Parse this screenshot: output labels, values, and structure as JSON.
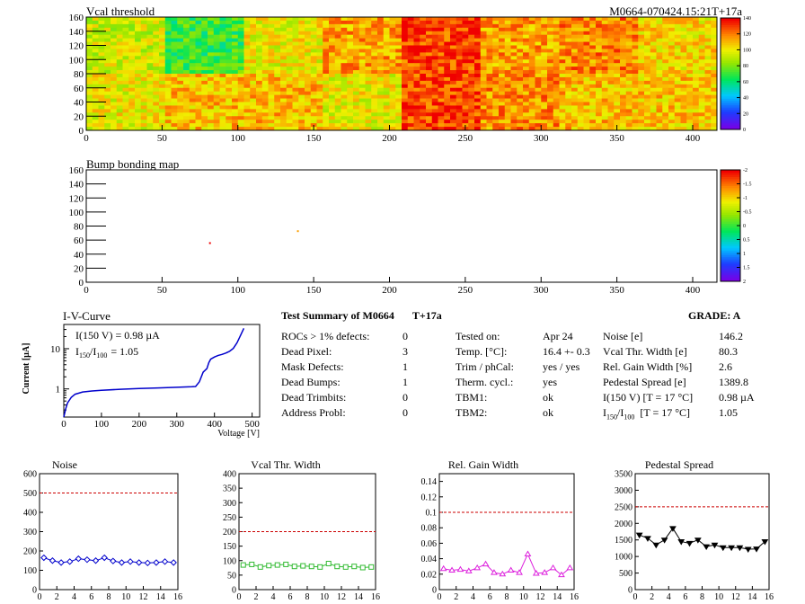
{
  "header": {
    "right_label": "M0664-070424.15:21T+17a"
  },
  "chart_data": [
    {
      "type": "heatmap",
      "title": "Vcal threshold",
      "xlim": [
        0,
        416
      ],
      "ylim": [
        0,
        160
      ],
      "x_ticks": [
        0,
        50,
        100,
        150,
        200,
        250,
        300,
        350,
        400
      ],
      "y_ticks": [
        0,
        20,
        40,
        60,
        80,
        100,
        120,
        140,
        160
      ],
      "color_scale": [
        0,
        140
      ],
      "color_scale_ticks": [
        0,
        20,
        40,
        60,
        80,
        100,
        120,
        140
      ],
      "roc_mean_levels_top": [
        95,
        70,
        100,
        115,
        130,
        115,
        120,
        105
      ],
      "roc_mean_levels_bottom": [
        100,
        110,
        110,
        100,
        130,
        118,
        110,
        108
      ]
    },
    {
      "type": "heatmap",
      "title": "Bump bonding map",
      "xlim": [
        0,
        416
      ],
      "ylim": [
        0,
        160
      ],
      "x_ticks": [
        0,
        50,
        100,
        150,
        200,
        250,
        300,
        350,
        400
      ],
      "y_ticks": [
        0,
        20,
        40,
        60,
        80,
        100,
        120,
        140,
        160
      ],
      "color_scale": [
        -2,
        2
      ],
      "color_scale_ticks": [
        "2",
        "1.5",
        "1",
        "0.5",
        "0",
        "-0.5",
        "-1",
        "-1.5",
        "-2"
      ],
      "points": [
        {
          "x": 81,
          "y": 57,
          "value": 2
        },
        {
          "x": 139,
          "y": 74,
          "value": 1.3
        }
      ]
    },
    {
      "type": "line",
      "title": "I-V-Curve",
      "xlabel": "Voltage [V]",
      "ylabel": "Current [µA]",
      "y_scale": "log",
      "xlim": [
        0,
        520
      ],
      "ylim": [
        0.2,
        40
      ],
      "x_ticks": [
        0,
        100,
        200,
        300,
        400,
        500
      ],
      "y_ticks": [
        1,
        10
      ],
      "y_tick_labels": [
        "1",
        "10"
      ],
      "annotation_1": "I(150 V) = 0.98 µA",
      "annotation_2_main": "I",
      "annotation_2_sub1": "150",
      "annotation_2_mid": "/I",
      "annotation_2_sub2": "100",
      "annotation_2_value": "=  1.05",
      "x": [
        0,
        5,
        10,
        20,
        30,
        50,
        75,
        100,
        150,
        200,
        250,
        300,
        340,
        350,
        360,
        370,
        380,
        385,
        390,
        400,
        410,
        420,
        430,
        440,
        450,
        460,
        470,
        478
      ],
      "y": [
        0.2,
        0.32,
        0.45,
        0.62,
        0.74,
        0.84,
        0.89,
        0.92,
        0.98,
        1.02,
        1.06,
        1.1,
        1.13,
        1.15,
        1.5,
        2.6,
        3.2,
        4.5,
        5.5,
        6.2,
        6.8,
        7.2,
        7.8,
        8.6,
        10.2,
        14,
        22,
        32
      ]
    },
    {
      "type": "line",
      "title": "Noise",
      "xlim": [
        0,
        16
      ],
      "ylim": [
        0,
        600
      ],
      "x_ticks": [
        0,
        2,
        4,
        6,
        8,
        10,
        12,
        14,
        16
      ],
      "y_ticks": [
        0,
        100,
        200,
        300,
        400,
        500,
        600
      ],
      "threshold": 500,
      "color": "#0000cc",
      "marker": "diamond",
      "x": [
        0.5,
        1.5,
        2.5,
        3.5,
        4.5,
        5.5,
        6.5,
        7.5,
        8.5,
        9.5,
        10.5,
        11.5,
        12.5,
        13.5,
        14.5,
        15.5
      ],
      "y": [
        165,
        150,
        140,
        145,
        160,
        155,
        150,
        165,
        148,
        140,
        145,
        140,
        138,
        140,
        145,
        140
      ]
    },
    {
      "type": "line",
      "title": "Vcal Thr. Width",
      "xlim": [
        0,
        16
      ],
      "ylim": [
        0,
        400
      ],
      "x_ticks": [
        0,
        2,
        4,
        6,
        8,
        10,
        12,
        14,
        16
      ],
      "y_ticks": [
        0,
        50,
        100,
        150,
        200,
        250,
        300,
        350,
        400
      ],
      "threshold": 200,
      "color": "#33bb33",
      "marker": "square",
      "x": [
        0.5,
        1.5,
        2.5,
        3.5,
        4.5,
        5.5,
        6.5,
        7.5,
        8.5,
        9.5,
        10.5,
        11.5,
        12.5,
        13.5,
        14.5,
        15.5
      ],
      "y": [
        85,
        87,
        78,
        83,
        85,
        87,
        80,
        82,
        80,
        78,
        90,
        80,
        78,
        80,
        76,
        78
      ]
    },
    {
      "type": "line",
      "title": "Rel. Gain Width",
      "xlim": [
        0,
        16
      ],
      "ylim": [
        0,
        0.15
      ],
      "x_ticks": [
        0,
        2,
        4,
        6,
        8,
        10,
        12,
        14,
        16
      ],
      "y_ticks": [
        0,
        0.02,
        0.04,
        0.06,
        0.08,
        0.1,
        0.12,
        0.14
      ],
      "threshold": 0.1,
      "color": "#dd22dd",
      "marker": "triangle",
      "x": [
        0.5,
        1.5,
        2.5,
        3.5,
        4.5,
        5.5,
        6.5,
        7.5,
        8.5,
        9.5,
        10.5,
        11.5,
        12.5,
        13.5,
        14.5,
        15.5
      ],
      "y": [
        0.027,
        0.025,
        0.026,
        0.024,
        0.028,
        0.033,
        0.022,
        0.02,
        0.025,
        0.022,
        0.046,
        0.021,
        0.022,
        0.028,
        0.019,
        0.028
      ]
    },
    {
      "type": "line",
      "title": "Pedestal Spread",
      "xlim": [
        0,
        16
      ],
      "ylim": [
        0,
        3500
      ],
      "x_ticks": [
        0,
        2,
        4,
        6,
        8,
        10,
        12,
        14,
        16
      ],
      "y_ticks": [
        0,
        500,
        1000,
        1500,
        2000,
        2500,
        3000,
        3500
      ],
      "threshold": 2500,
      "color": "#000000",
      "marker": "triangle-down",
      "x": [
        0.5,
        1.5,
        2.5,
        3.5,
        4.5,
        5.5,
        6.5,
        7.5,
        8.5,
        9.5,
        10.5,
        11.5,
        12.5,
        13.5,
        14.5,
        15.5
      ],
      "y": [
        1650,
        1550,
        1350,
        1500,
        1850,
        1450,
        1400,
        1500,
        1300,
        1350,
        1270,
        1270,
        1270,
        1220,
        1230,
        1450
      ]
    }
  ],
  "summary": {
    "title": "Test Summary of M0664",
    "tag": "T+17a",
    "grade": "GRADE:  A",
    "col1_labels": [
      "ROCs > 1% defects:",
      "Dead Pixel:",
      "Mask Defects:",
      "Dead Bumps:",
      "Dead Trimbits:",
      "Address Probl:"
    ],
    "col1_values": [
      "0",
      "3",
      "1",
      "1",
      "0",
      "0"
    ],
    "col2_labels": [
      "Tested on:",
      "Temp. [°C]:",
      "Trim / phCal:",
      "Therm. cycl.:",
      "TBM1:",
      "TBM2:"
    ],
    "col2_values": [
      "Apr 24",
      "16.4 +- 0.3",
      "yes / yes",
      "yes",
      "ok",
      "ok"
    ],
    "col3_labels": [
      "Noise [e]",
      "Vcal Thr. Width [e]",
      "Rel. Gain Width [%]",
      "Pedestal Spread [e]",
      "I(150 V) [T = 17 °C]"
    ],
    "col3_label_last_main": "I",
    "col3_label_last_sub1": "150",
    "col3_label_last_mid": "/I",
    "col3_label_last_sub2": "100",
    "col3_label_last_tail": "  [T = 17 °C]",
    "col3_values": [
      "146.2",
      "80.3",
      "2.6",
      "1389.8",
      "0.98 µA",
      "1.05"
    ]
  }
}
